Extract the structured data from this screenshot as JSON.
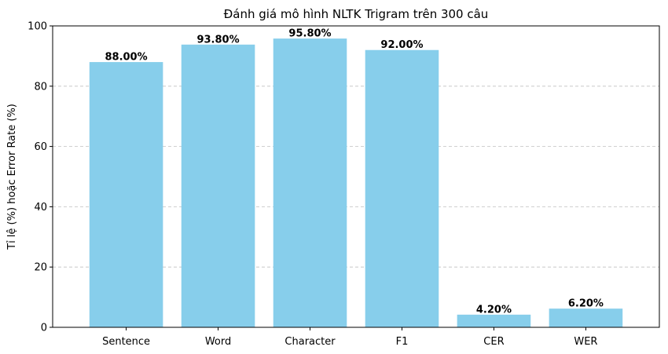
{
  "chart_data": {
    "type": "bar",
    "title": "Đánh giá mô hình NLTK Trigram trên 300 câu",
    "xlabel": "",
    "ylabel": "Tỉ lệ (%) hoặc Error Rate (%)",
    "categories": [
      "Sentence",
      "Word",
      "Character",
      "F1",
      "CER",
      "WER"
    ],
    "values": [
      88.0,
      93.8,
      95.8,
      92.0,
      4.2,
      6.2
    ],
    "value_labels": [
      "88.00%",
      "93.80%",
      "95.80%",
      "92.00%",
      "4.20%",
      "6.20%"
    ],
    "ylim": [
      0,
      100
    ],
    "yticks": [
      0,
      20,
      40,
      60,
      80,
      100
    ],
    "ytick_labels": [
      "0",
      "20",
      "40",
      "60",
      "80",
      "100"
    ],
    "grid": "y-dashed",
    "bar_color": "#87ceeb",
    "grid_color": "#c0c0c0"
  }
}
